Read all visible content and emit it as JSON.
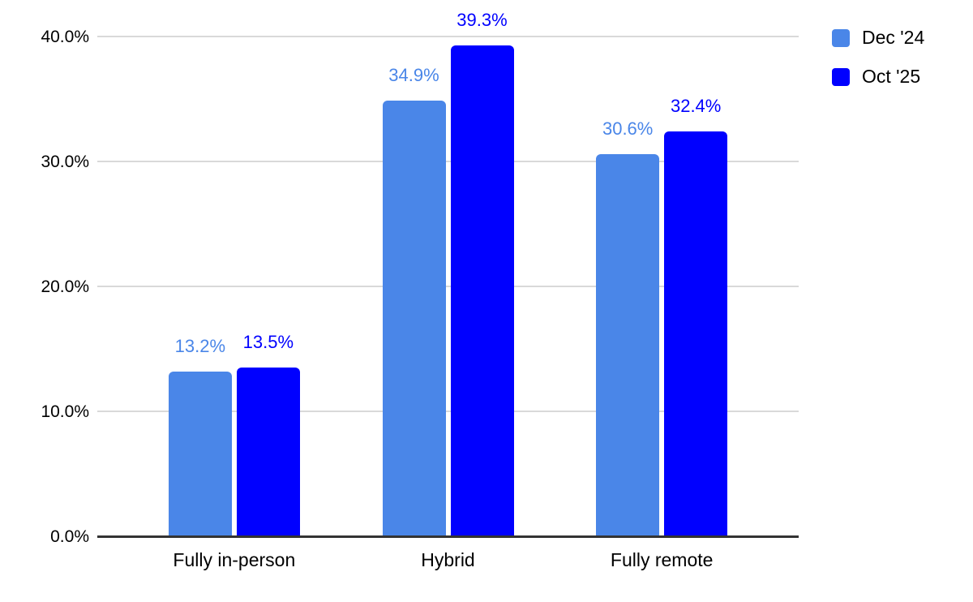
{
  "chart_data": {
    "type": "bar",
    "title": "",
    "categories": [
      "Fully in-person",
      "Hybrid",
      "Fully remote"
    ],
    "series": [
      {
        "name": "Dec '24",
        "color": "#4a86e8",
        "values": [
          13.2,
          34.9,
          30.6
        ],
        "value_labels": [
          "13.2%",
          "34.9%",
          "30.6%"
        ]
      },
      {
        "name": "Oct '25",
        "color": "#0000ff",
        "values": [
          13.5,
          39.3,
          32.4
        ],
        "value_labels": [
          "13.5%",
          "39.3%",
          "32.4%"
        ]
      }
    ],
    "ylim": [
      0,
      40
    ],
    "yticks": [
      {
        "value": 0,
        "label": "0.0%"
      },
      {
        "value": 10,
        "label": "10.0%"
      },
      {
        "value": 20,
        "label": "20.0%"
      },
      {
        "value": 30,
        "label": "30.0%"
      },
      {
        "value": 40,
        "label": "40.0%"
      }
    ],
    "grid": "horizontal",
    "legend_position": "top-right",
    "colors": {
      "gridline": "#d9d9d9",
      "axis_line": "#333333",
      "tick_text": "#000000",
      "background": "#ffffff"
    }
  }
}
